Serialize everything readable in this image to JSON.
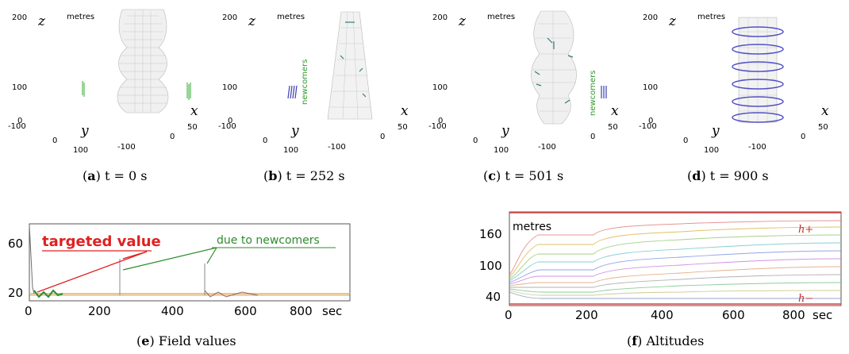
{
  "panels": [
    {
      "id": "a",
      "letter": "a",
      "caption_rest": "t = 0 s"
    },
    {
      "id": "b",
      "letter": "b",
      "caption_rest": "t = 252 s",
      "side_label": "newcomers"
    },
    {
      "id": "c",
      "letter": "c",
      "caption_rest": "t = 501 s",
      "side_label": "newcomers"
    },
    {
      "id": "d",
      "letter": "d",
      "caption_rest": "t = 900 s"
    }
  ],
  "axes3d": {
    "unit": "metres",
    "z_label": "z",
    "x_label": "x",
    "y_label": "y",
    "z_ticks": [
      "200",
      "100",
      "0"
    ],
    "y_ticks": [
      "-100",
      "0",
      "100"
    ],
    "x_ticks": [
      "-100",
      "0",
      "50"
    ]
  },
  "plot_e": {
    "letter": "e",
    "caption_rest": "Field values",
    "annotation_red": "targeted value",
    "annotation_green": "due to newcomers",
    "y_ticks": [
      "60",
      "20"
    ],
    "x_ticks": [
      "0",
      "200",
      "400",
      "600",
      "800"
    ],
    "x_unit": "sec",
    "colors": {
      "target": "#e02020",
      "newcomers": "#2e8b2e"
    }
  },
  "plot_f": {
    "letter": "f",
    "caption_rest": "Altitudes",
    "unit": "metres",
    "y_ticks": [
      "160",
      "100",
      "40"
    ],
    "x_ticks": [
      "0",
      "200",
      "400",
      "600",
      "800"
    ],
    "x_unit": "sec",
    "h_plus": "h+",
    "h_minus": "h−"
  }
}
